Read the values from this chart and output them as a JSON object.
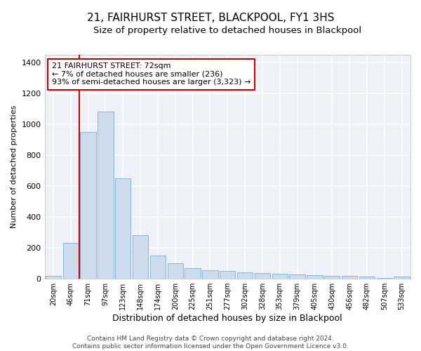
{
  "title": "21, FAIRHURST STREET, BLACKPOOL, FY1 3HS",
  "subtitle": "Size of property relative to detached houses in Blackpool",
  "xlabel": "Distribution of detached houses by size in Blackpool",
  "ylabel": "Number of detached properties",
  "categories": [
    "20sqm",
    "46sqm",
    "71sqm",
    "97sqm",
    "123sqm",
    "148sqm",
    "174sqm",
    "200sqm",
    "225sqm",
    "251sqm",
    "277sqm",
    "302sqm",
    "328sqm",
    "353sqm",
    "379sqm",
    "405sqm",
    "430sqm",
    "456sqm",
    "482sqm",
    "507sqm",
    "533sqm"
  ],
  "values": [
    20,
    230,
    950,
    1080,
    650,
    280,
    150,
    100,
    70,
    55,
    50,
    40,
    35,
    30,
    28,
    25,
    20,
    17,
    14,
    5,
    15
  ],
  "bar_color": "#ccdcec",
  "bar_edge_color": "#7aafd4",
  "vline_color": "#cc0000",
  "vline_x": 1.5,
  "annotation_text": "21 FAIRHURST STREET: 72sqm\n← 7% of detached houses are smaller (236)\n93% of semi-detached houses are larger (3,323) →",
  "annotation_box_color": "#cc0000",
  "ylim": [
    0,
    1450
  ],
  "yticks": [
    0,
    200,
    400,
    600,
    800,
    1000,
    1200,
    1400
  ],
  "background_color": "#eef2f8",
  "grid_color": "#ffffff",
  "footer_line1": "Contains HM Land Registry data © Crown copyright and database right 2024.",
  "footer_line2": "Contains public sector information licensed under the Open Government Licence v3.0."
}
